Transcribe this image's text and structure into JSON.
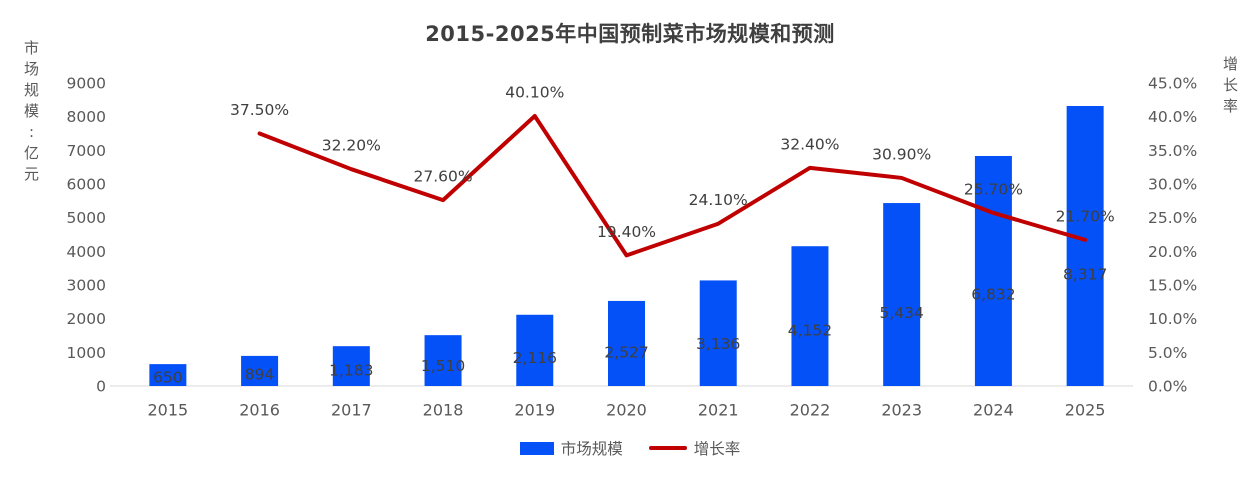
{
  "title": "2015-2025年中国预制菜市场规模和预测",
  "colors": {
    "bar": "#0551F8",
    "line": "#C00000",
    "title_text": "#3F3F3F",
    "tick_text": "#595959",
    "data_label_text": "#3F3F3F",
    "axis_line": "#D9D9D9"
  },
  "left_axis": {
    "title": "市场规模:亿元",
    "min": 0,
    "max": 9000,
    "step": 1000,
    "tick_labels": [
      "0",
      "1000",
      "2000",
      "3000",
      "4000",
      "5000",
      "6000",
      "7000",
      "8000",
      "9000"
    ]
  },
  "right_axis": {
    "title": "增长率",
    "min": 0,
    "max": 45,
    "step": 5,
    "tick_labels": [
      "0.0%",
      "5.0%",
      "10.0%",
      "15.0%",
      "20.0%",
      "25.0%",
      "30.0%",
      "35.0%",
      "40.0%",
      "45.0%"
    ]
  },
  "legend": [
    {
      "label": "市场规模",
      "type": "bar",
      "color": "#0551F8"
    },
    {
      "label": "增长率",
      "type": "line",
      "color": "#C00000"
    }
  ],
  "chart_data": {
    "type": "bar",
    "subtype": "combo-bar-line-dual-axis",
    "title": "2015-2025年中国预制菜市场规模和预测",
    "categories": [
      "2015",
      "2016",
      "2017",
      "2018",
      "2019",
      "2020",
      "2021",
      "2022",
      "2023",
      "2024",
      "2025"
    ],
    "series": [
      {
        "name": "市场规模",
        "type": "bar",
        "axis": "left",
        "unit": "亿元",
        "color": "#0551F8",
        "values": [
          650,
          894,
          1183,
          1510,
          2116,
          2527,
          3136,
          4152,
          5434,
          6832,
          8317
        ],
        "labels": [
          "650",
          "894",
          "1,183",
          "1,510",
          "2,116",
          "2,527",
          "3,136",
          "4,152",
          "5,434",
          "6,832",
          "8,317"
        ]
      },
      {
        "name": "增长率",
        "type": "line",
        "axis": "right",
        "unit": "%",
        "color": "#C00000",
        "values": [
          null,
          37.5,
          32.2,
          27.6,
          40.1,
          19.4,
          24.1,
          32.4,
          30.9,
          25.7,
          21.7
        ],
        "labels": [
          null,
          "37.50%",
          "32.20%",
          "27.60%",
          "40.10%",
          "19.40%",
          "24.10%",
          "32.40%",
          "30.90%",
          "25.70%",
          "21.70%"
        ]
      }
    ],
    "xlabel": "",
    "ylabel_left": "市场规模:亿元",
    "ylabel_right": "增长率",
    "ylim_left": [
      0,
      9000
    ],
    "ylim_right": [
      0,
      45
    ],
    "grid": false,
    "legend_position": "bottom"
  }
}
